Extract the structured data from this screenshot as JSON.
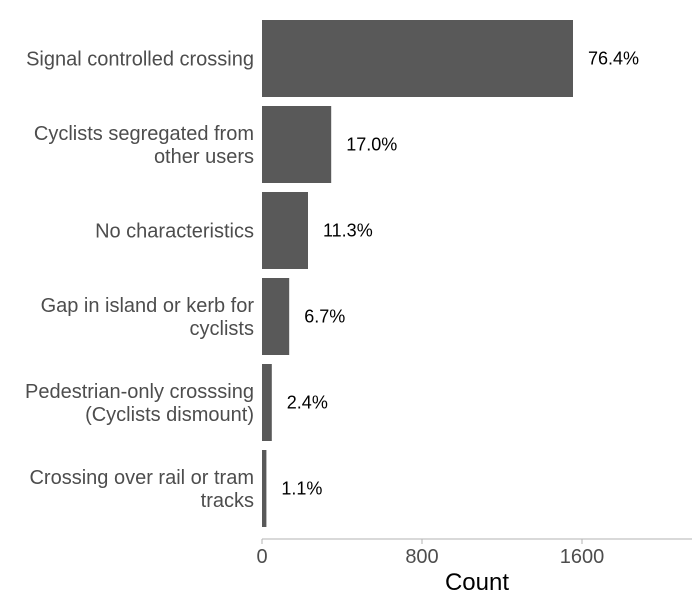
{
  "chart_data": {
    "type": "bar",
    "orientation": "horizontal",
    "categories": [
      [
        "Signal controlled crossing"
      ],
      [
        "Cyclists segregated from",
        "other users"
      ],
      [
        "No characteristics"
      ],
      [
        "Gap in island or kerb for",
        "cyclists"
      ],
      [
        "Pedestrian-only crosssing",
        "(Cyclists dismount)"
      ],
      [
        "Crossing over rail or tram",
        "tracks"
      ]
    ],
    "values": [
      1555,
      346,
      230,
      136,
      49,
      22
    ],
    "value_labels": [
      "76.4%",
      "17.0%",
      "11.3%",
      "6.7%",
      "2.4%",
      "1.1%"
    ],
    "xlabel": "Count",
    "ylabel": "",
    "xlim": [
      0,
      2150
    ],
    "xticks": [
      0,
      800,
      1600
    ],
    "xtick_labels": [
      "0",
      "800",
      "1600"
    ],
    "grid": false,
    "bar_color": "#595959",
    "axis_color": "#b3b3b3"
  }
}
